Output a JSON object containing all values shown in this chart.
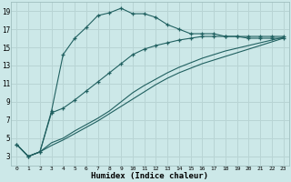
{
  "xlabel": "Humidex (Indice chaleur)",
  "bg_color": "#cce8e8",
  "grid_color": "#b8d4d4",
  "line_color": "#206060",
  "xlim": [
    -0.5,
    23.5
  ],
  "ylim": [
    2.0,
    20.0
  ],
  "yticks": [
    3,
    5,
    7,
    9,
    11,
    13,
    15,
    17,
    19
  ],
  "xticks": [
    0,
    1,
    2,
    3,
    4,
    5,
    6,
    7,
    8,
    9,
    10,
    11,
    12,
    13,
    14,
    15,
    16,
    17,
    18,
    19,
    20,
    21,
    22,
    23
  ],
  "series_marked": [
    {
      "x": [
        0,
        1,
        2,
        3,
        4,
        5,
        6,
        7,
        8,
        9,
        10,
        11,
        12,
        13,
        14,
        15,
        16,
        17,
        18,
        19,
        20,
        21,
        22,
        23
      ],
      "y": [
        4.3,
        3.0,
        3.5,
        8.0,
        14.2,
        16.0,
        17.2,
        18.5,
        18.8,
        19.3,
        18.7,
        18.7,
        18.3,
        17.5,
        17.0,
        16.5,
        16.5,
        16.5,
        16.2,
        16.2,
        16.0,
        16.0,
        16.0,
        16.0
      ]
    },
    {
      "x": [
        0,
        1,
        2,
        3,
        4,
        5,
        6,
        7,
        8,
        9,
        10,
        11,
        12,
        13,
        14,
        15,
        16,
        17,
        18,
        19,
        20,
        21,
        22,
        23
      ],
      "y": [
        4.3,
        3.0,
        3.5,
        7.8,
        8.3,
        9.2,
        10.2,
        11.2,
        12.2,
        13.2,
        14.2,
        14.8,
        15.2,
        15.5,
        15.8,
        16.0,
        16.2,
        16.2,
        16.2,
        16.2,
        16.2,
        16.2,
        16.2,
        16.2
      ]
    }
  ],
  "series_plain": [
    {
      "x": [
        0,
        1,
        2,
        3,
        4,
        5,
        6,
        7,
        8,
        9,
        10,
        11,
        12,
        13,
        14,
        15,
        16,
        17,
        18,
        19,
        20,
        21,
        22,
        23
      ],
      "y": [
        4.3,
        3.0,
        3.5,
        4.5,
        5.0,
        5.8,
        6.5,
        7.2,
        8.0,
        9.0,
        10.0,
        10.8,
        11.5,
        12.2,
        12.8,
        13.3,
        13.8,
        14.2,
        14.6,
        14.9,
        15.2,
        15.5,
        15.8,
        16.1
      ]
    },
    {
      "x": [
        0,
        1,
        2,
        3,
        4,
        5,
        6,
        7,
        8,
        9,
        10,
        11,
        12,
        13,
        14,
        15,
        16,
        17,
        18,
        19,
        20,
        21,
        22,
        23
      ],
      "y": [
        4.3,
        3.0,
        3.5,
        4.2,
        4.8,
        5.5,
        6.2,
        6.9,
        7.7,
        8.5,
        9.3,
        10.1,
        10.9,
        11.6,
        12.2,
        12.7,
        13.2,
        13.6,
        14.0,
        14.4,
        14.8,
        15.2,
        15.6,
        16.0
      ]
    }
  ]
}
